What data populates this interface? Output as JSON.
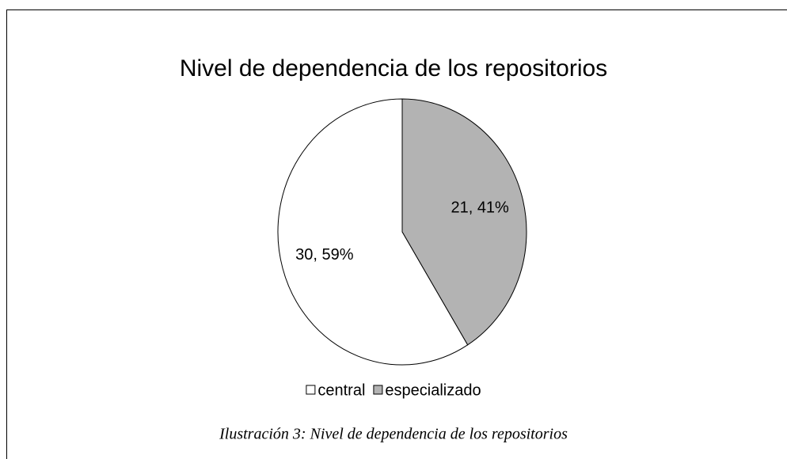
{
  "chart_data": {
    "type": "pie",
    "title": "Nivel de dependencia de los repositorios",
    "categories": [
      "central",
      "especializado"
    ],
    "values": [
      30,
      21
    ],
    "value_labels": [
      "30, 59%",
      "21, 41%"
    ],
    "colors": [
      "#ffffff",
      "#b3b3b3"
    ],
    "legend": "bottom",
    "caption": "Ilustración 3: Nivel de dependencia de los repositorios"
  }
}
